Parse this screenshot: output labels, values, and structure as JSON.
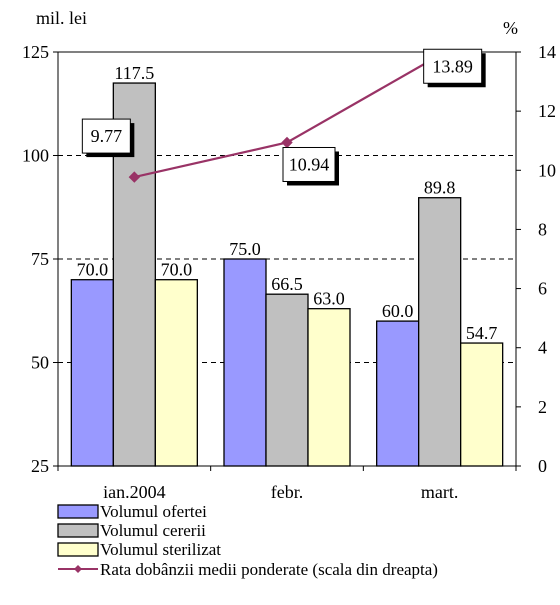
{
  "chart_data": {
    "type": "bar",
    "left_unit": "mil. lei",
    "right_unit": "%",
    "categories": [
      "ian.2004",
      "febr.",
      "mart."
    ],
    "ylim_left": [
      25,
      125
    ],
    "yticks_left": [
      "25",
      "50",
      "75",
      "100",
      "125"
    ],
    "ylim_right": [
      0,
      14
    ],
    "yticks_right": [
      "0",
      "2",
      "4",
      "6",
      "8",
      "10",
      "12",
      "14"
    ],
    "series": [
      {
        "name": "Volumul ofertei",
        "values": [
          70.0,
          75.0,
          60.0
        ],
        "labels": [
          "70.0",
          "75.0",
          "60.0"
        ],
        "color": "#9999ff"
      },
      {
        "name": "Volumul cererii",
        "values": [
          117.5,
          66.5,
          89.8
        ],
        "labels": [
          "117.5",
          "66.5",
          "89.8"
        ],
        "color": "#c0c0c0"
      },
      {
        "name": "Volumul sterilizat",
        "values": [
          70.0,
          63.0,
          54.7
        ],
        "labels": [
          "70.0",
          "63.0",
          "54.7"
        ],
        "color": "#ffffcc"
      }
    ],
    "line_series": {
      "name": "Rata dobânzii medii ponderate (scala din dreapta)",
      "values": [
        9.77,
        10.94,
        13.89
      ],
      "labels": [
        "9.77",
        "10.94",
        "13.89"
      ],
      "color": "#993366",
      "axis": "right"
    },
    "grid": "dashed horizontal",
    "legend_position": "bottom"
  }
}
